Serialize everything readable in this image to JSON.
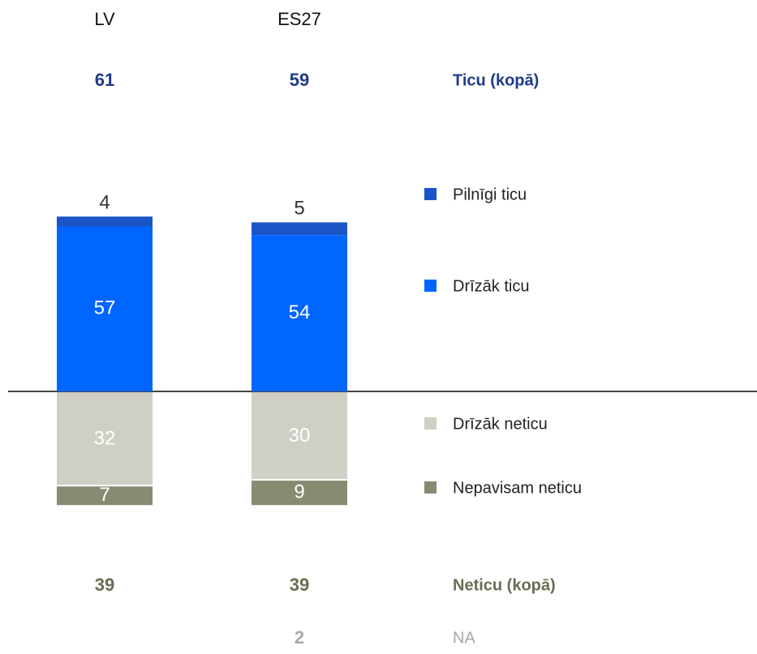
{
  "chart_data": {
    "type": "diverging_bar",
    "categories": [
      "LV",
      "ES27"
    ],
    "series": [
      {
        "name": "Pilnīgi ticu",
        "color": "#1a55c8",
        "side": "positive",
        "values": [
          4,
          5
        ]
      },
      {
        "name": "Drīzāk ticu",
        "color": "#0066ff",
        "side": "positive",
        "values": [
          57,
          54
        ]
      },
      {
        "name": "Drīzāk neticu",
        "color": "#cfcfc6",
        "side": "negative",
        "values": [
          32,
          30
        ]
      },
      {
        "name": "Nepavisam neticu",
        "color": "#898a72",
        "side": "negative",
        "values": [
          7,
          9
        ]
      }
    ],
    "summary_rows": [
      {
        "name": "Ticu (kopā)",
        "color": "#1f3a8a",
        "values": [
          61,
          59
        ]
      },
      {
        "name": "Neticu (kopā)",
        "color": "#6b6b55",
        "values": [
          39,
          39
        ]
      },
      {
        "name": "NA",
        "color": "#a8a8a8",
        "values": [
          null,
          2
        ]
      }
    ]
  }
}
